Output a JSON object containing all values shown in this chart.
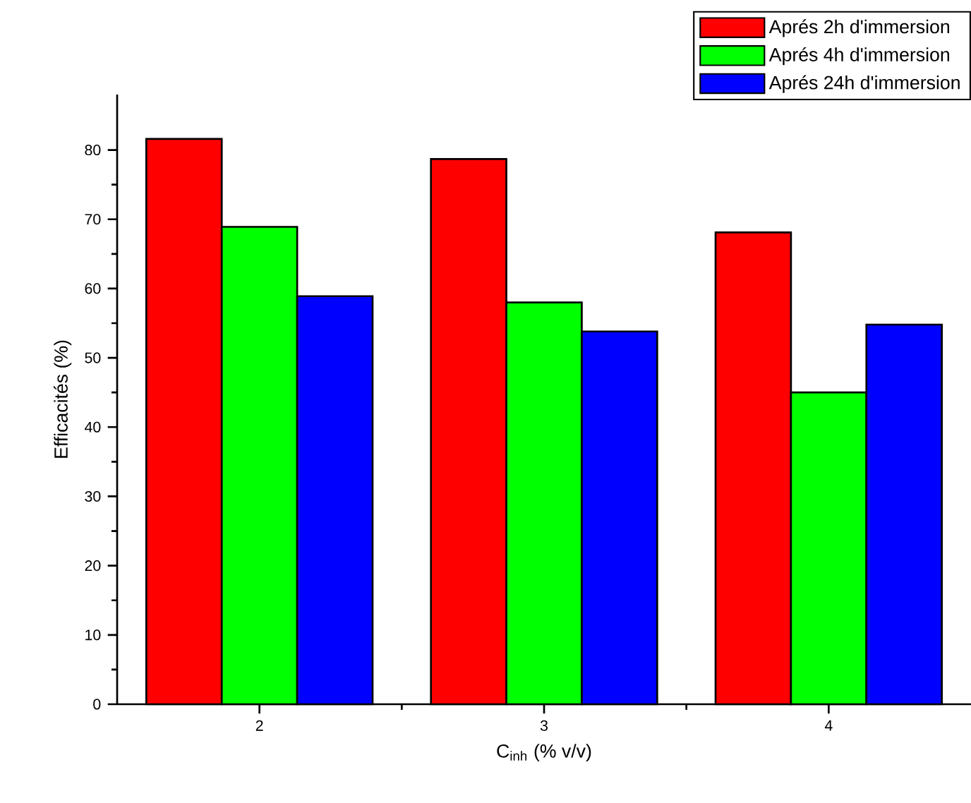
{
  "chart_data": {
    "type": "bar",
    "xlabel": "C$_{inh}$ (% v/v)",
    "ylabel": "Efficacités (%)",
    "categories": [
      "2",
      "3",
      "4"
    ],
    "series": [
      {
        "name": "Aprés 2h d'immersion",
        "color": "#ff0000",
        "values": [
          81.6,
          78.7,
          68.1
        ]
      },
      {
        "name": "Aprés 4h d'immersion",
        "color": "#00ff00",
        "values": [
          68.9,
          58.0,
          45.0
        ]
      },
      {
        "name": "Aprés 24h d'immersion",
        "color": "#0000ff",
        "values": [
          58.9,
          53.8,
          54.8
        ]
      }
    ],
    "ylim": [
      0,
      88
    ],
    "yticks": [
      0,
      10,
      20,
      30,
      40,
      50,
      60,
      70,
      80
    ],
    "legend": "top right"
  }
}
